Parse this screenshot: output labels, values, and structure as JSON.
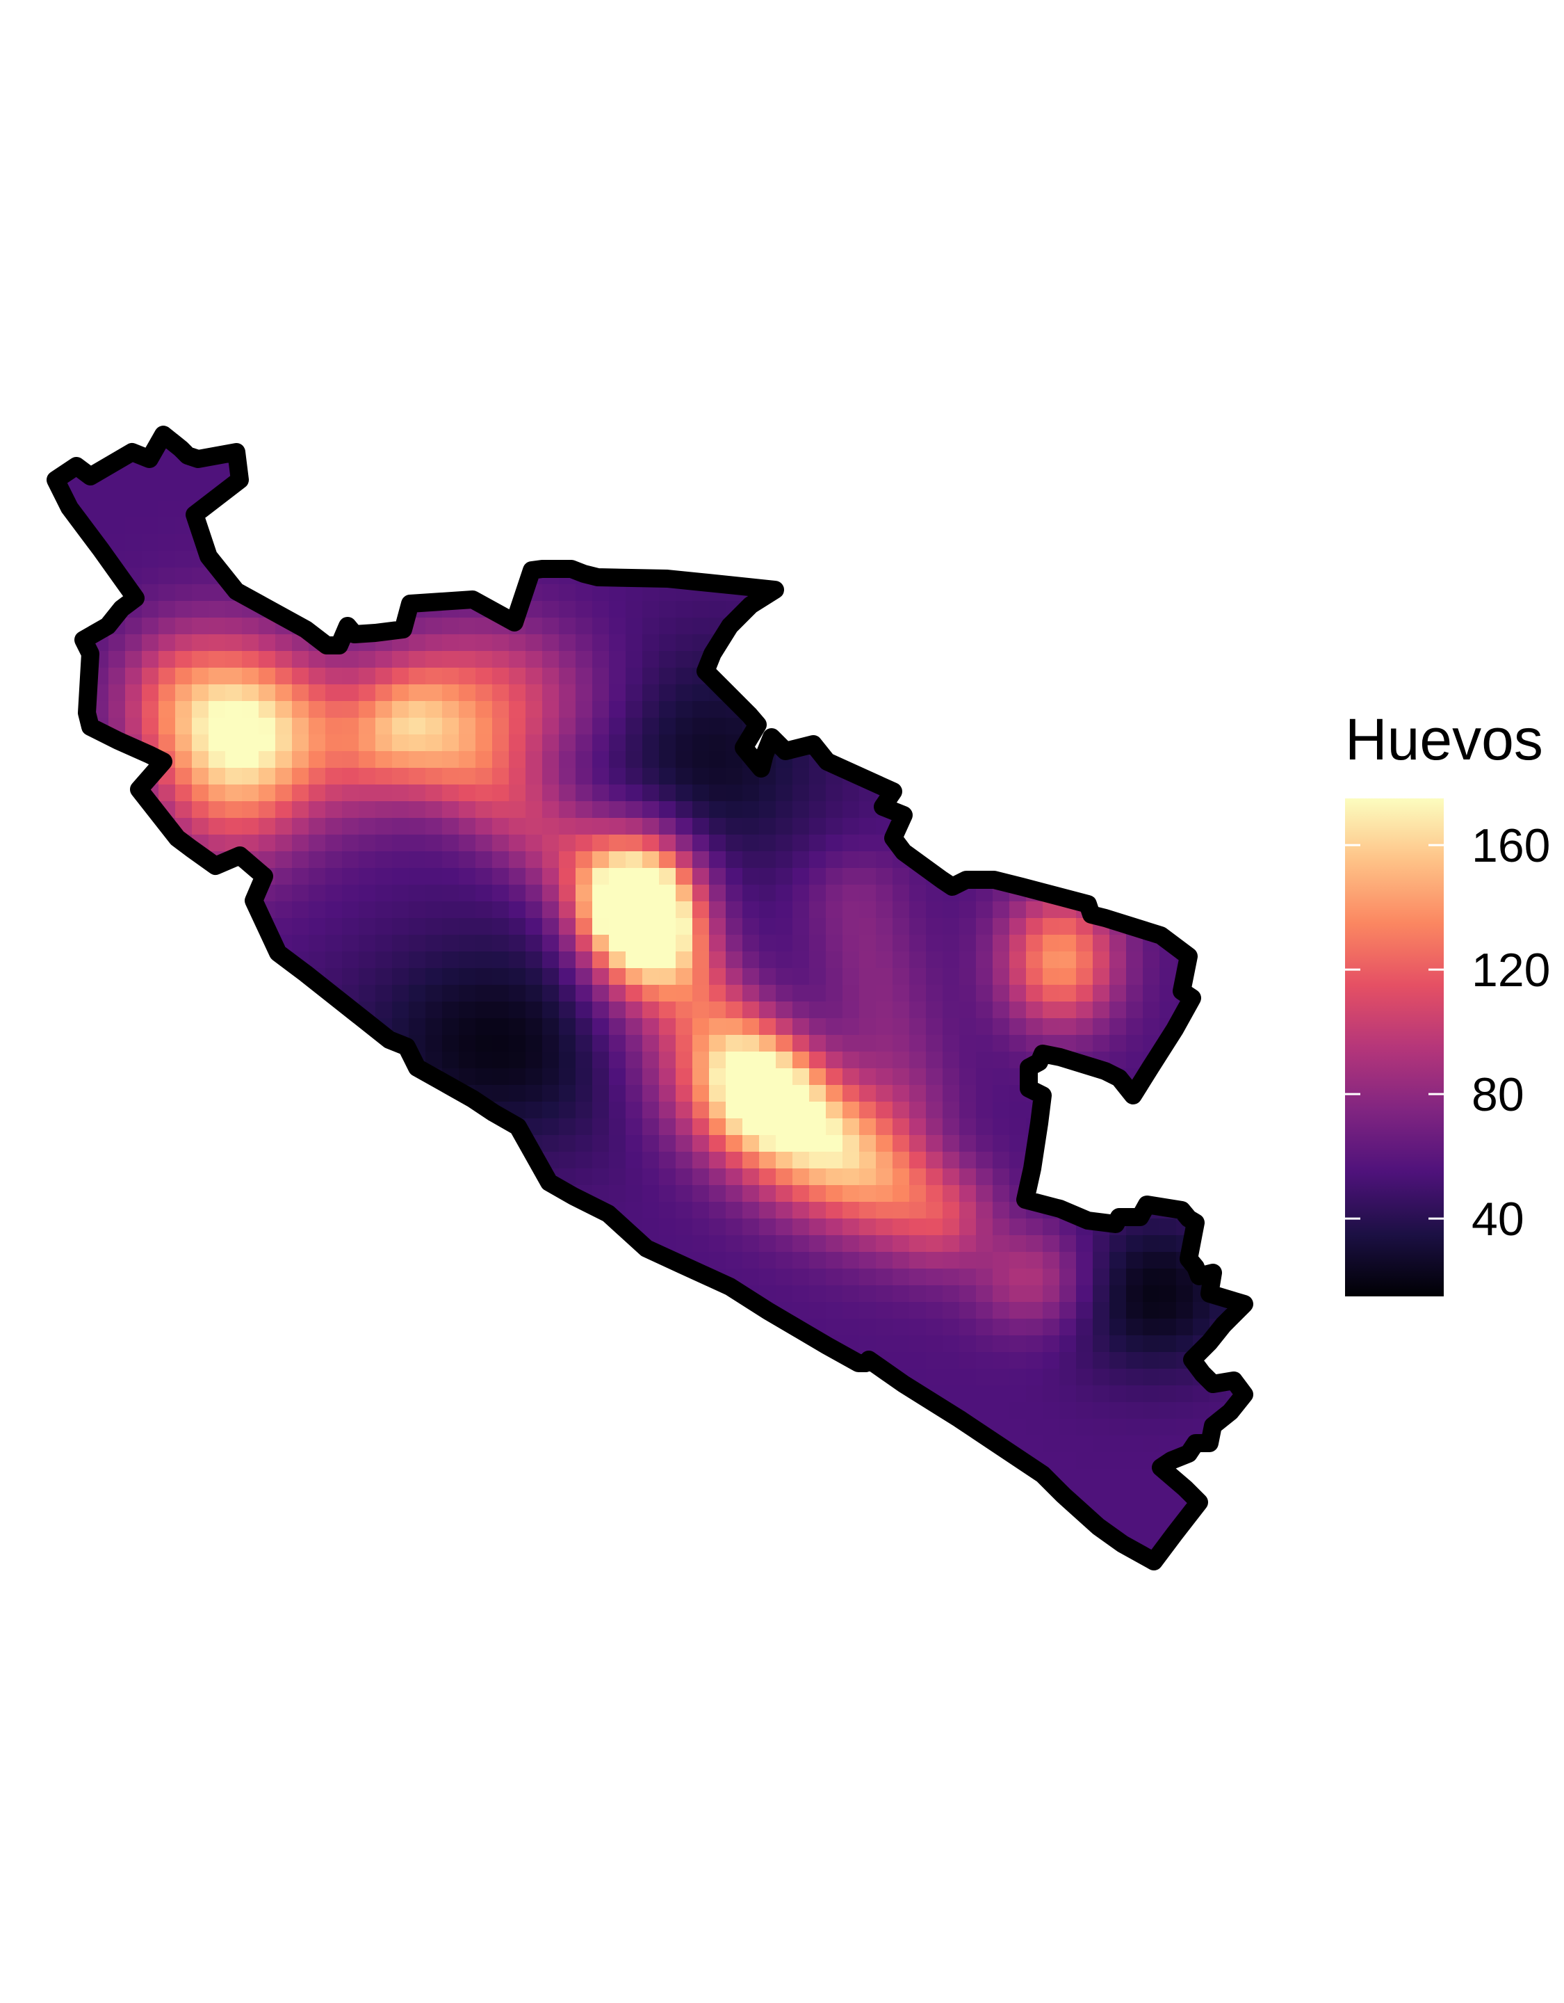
{
  "chart_data": {
    "type": "heatmap",
    "title": "",
    "subtitle": "",
    "legend": {
      "title": "Huevos",
      "placement": "right",
      "colormap": "magma",
      "range": [
        15,
        175
      ],
      "ticks": [
        {
          "value": 40,
          "label": "40"
        },
        {
          "value": 80,
          "label": "80"
        },
        {
          "value": 120,
          "label": "120"
        },
        {
          "value": 160,
          "label": "160"
        }
      ]
    },
    "surface": {
      "background_level": 55,
      "hotspots": [
        {
          "value": 175,
          "note": "central peak"
        },
        {
          "value": 150,
          "note": "west lobe"
        },
        {
          "value": 145,
          "note": "south-central ridge"
        },
        {
          "value": 140,
          "note": "east lobe"
        },
        {
          "value": 120,
          "note": "north-central"
        },
        {
          "value": 95,
          "note": "south-east patch"
        },
        {
          "value": 20,
          "note": "south-west trough"
        },
        {
          "value": 25,
          "note": "north trough"
        },
        {
          "value": 20,
          "note": "far south-east trough"
        }
      ]
    },
    "grid": false,
    "colors": {
      "magma_stops": [
        "#000004",
        "#1c1044",
        "#4f127b",
        "#812581",
        "#b5367a",
        "#e55064",
        "#fb8761",
        "#fec287",
        "#fcfdbf"
      ],
      "boundary": "#000000"
    }
  }
}
